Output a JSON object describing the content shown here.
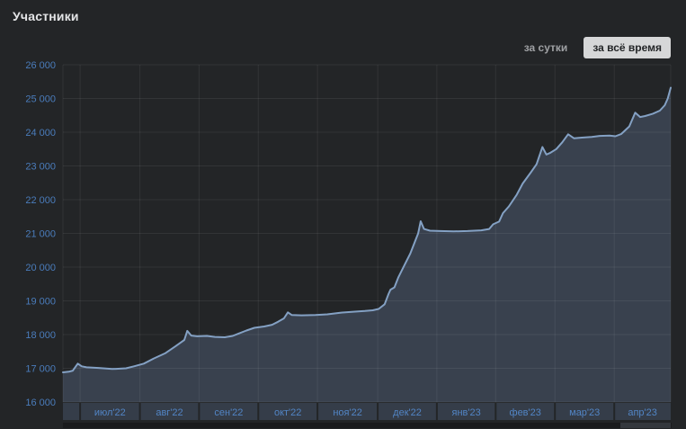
{
  "header": {
    "title": "Участники"
  },
  "toolbar": {
    "day_label": "за сутки",
    "alltime_label": "за всё время",
    "active": "за всё время"
  },
  "colors": {
    "background": "#232527",
    "title_text": "#e4e5e7",
    "inactive_button_text": "#9fa1a4",
    "active_button_bg": "#d6d7d8",
    "active_button_text": "#232527",
    "y_label_blue": "#4a7cbb",
    "x_label_blue": "#5285c5",
    "line": "#84a1c4",
    "area_fill": "#39414e",
    "axis_band": "#353d49",
    "grid": "rgba(255,255,255,0.07)",
    "scroll_track": "#1a1b1d",
    "scroll_thumb": "#34383d"
  },
  "chart_data": {
    "type": "area",
    "title": "Участники",
    "grid": true,
    "legend": "none",
    "ylim": [
      16000,
      26000
    ],
    "y_ticks": [
      16000,
      17000,
      18000,
      19000,
      20000,
      21000,
      22000,
      23000,
      24000,
      25000,
      26000
    ],
    "y_tick_labels": [
      "16 000",
      "17 000",
      "18 000",
      "19 000",
      "20 000",
      "21 000",
      "22 000",
      "23 000",
      "24 000",
      "25 000",
      "26 000"
    ],
    "x_labels": [
      "июл'22",
      "авг'22",
      "сен'22",
      "окт'22",
      "ноя'22",
      "дек'22",
      "янв'23",
      "фев'23",
      "мар'23",
      "апр'23"
    ],
    "x_domain_days": [
      0,
      308
    ],
    "month_boundaries_days": [
      8.7,
      39,
      69,
      99,
      129,
      159.5,
      189.5,
      219.3,
      249.3,
      279.4
    ],
    "series_name": "Участники",
    "points": [
      [
        0,
        16880
      ],
      [
        3,
        16900
      ],
      [
        5,
        16930
      ],
      [
        7.5,
        17140
      ],
      [
        9.5,
        17060
      ],
      [
        12,
        17030
      ],
      [
        18,
        17010
      ],
      [
        25,
        16980
      ],
      [
        32,
        17000
      ],
      [
        36,
        17060
      ],
      [
        41,
        17140
      ],
      [
        46,
        17290
      ],
      [
        52,
        17450
      ],
      [
        57,
        17650
      ],
      [
        61.5,
        17840
      ],
      [
        63,
        18110
      ],
      [
        65,
        17970
      ],
      [
        68,
        17950
      ],
      [
        73,
        17960
      ],
      [
        77,
        17930
      ],
      [
        82,
        17920
      ],
      [
        86,
        17960
      ],
      [
        89,
        18030
      ],
      [
        93,
        18120
      ],
      [
        97,
        18200
      ],
      [
        102,
        18240
      ],
      [
        106,
        18290
      ],
      [
        109,
        18380
      ],
      [
        112,
        18480
      ],
      [
        114,
        18660
      ],
      [
        116,
        18580
      ],
      [
        121,
        18570
      ],
      [
        128,
        18580
      ],
      [
        134,
        18600
      ],
      [
        141,
        18650
      ],
      [
        148,
        18680
      ],
      [
        153,
        18700
      ],
      [
        157,
        18720
      ],
      [
        160,
        18760
      ],
      [
        163,
        18900
      ],
      [
        165,
        19200
      ],
      [
        166,
        19330
      ],
      [
        168,
        19400
      ],
      [
        170,
        19700
      ],
      [
        173,
        20050
      ],
      [
        176,
        20400
      ],
      [
        178,
        20700
      ],
      [
        180,
        21000
      ],
      [
        181.3,
        21360
      ],
      [
        183,
        21130
      ],
      [
        186,
        21080
      ],
      [
        191,
        21070
      ],
      [
        198,
        21060
      ],
      [
        205,
        21070
      ],
      [
        212,
        21090
      ],
      [
        216,
        21130
      ],
      [
        218,
        21270
      ],
      [
        221,
        21350
      ],
      [
        223,
        21600
      ],
      [
        226,
        21800
      ],
      [
        230,
        22150
      ],
      [
        233,
        22480
      ],
      [
        237,
        22800
      ],
      [
        240,
        23050
      ],
      [
        243,
        23560
      ],
      [
        245,
        23340
      ],
      [
        247,
        23390
      ],
      [
        250,
        23500
      ],
      [
        253,
        23700
      ],
      [
        256,
        23940
      ],
      [
        259,
        23820
      ],
      [
        263,
        23840
      ],
      [
        268,
        23860
      ],
      [
        272,
        23890
      ],
      [
        277,
        23900
      ],
      [
        280,
        23880
      ],
      [
        283,
        23950
      ],
      [
        287,
        24170
      ],
      [
        290,
        24580
      ],
      [
        292.5,
        24450
      ],
      [
        295,
        24480
      ],
      [
        299,
        24550
      ],
      [
        302.5,
        24640
      ],
      [
        305,
        24800
      ],
      [
        306.5,
        25000
      ],
      [
        308,
        25320
      ]
    ]
  }
}
